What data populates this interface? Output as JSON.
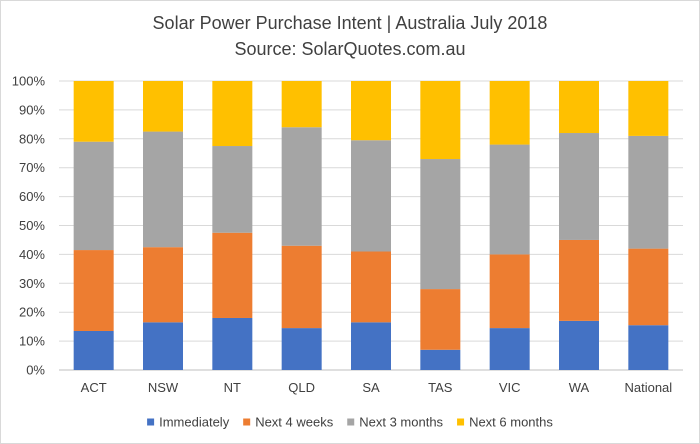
{
  "chart_data": {
    "type": "bar",
    "stacked": true,
    "title": "Solar Power Purchase Intent | Australia July 2018",
    "subtitle": "Source: SolarQuotes.com.au",
    "categories": [
      "ACT",
      "NSW",
      "NT",
      "QLD",
      "SA",
      "TAS",
      "VIC",
      "WA",
      "National"
    ],
    "series": [
      {
        "name": "Immediately",
        "color": "#4472c4",
        "values": [
          13.5,
          16.5,
          18,
          14.5,
          16.5,
          7,
          14.5,
          17,
          15.5
        ]
      },
      {
        "name": "Next 4 weeks",
        "color": "#ed7d31",
        "values": [
          28,
          26,
          29.5,
          28.5,
          24.5,
          21,
          25.5,
          28,
          26.5
        ]
      },
      {
        "name": "Next 3 months",
        "color": "#a5a5a5",
        "values": [
          37.5,
          40,
          30,
          41,
          38.5,
          45,
          38,
          37,
          39
        ]
      },
      {
        "name": "Next 6 months",
        "color": "#ffc000",
        "values": [
          21,
          17.5,
          22.5,
          16,
          20.5,
          27,
          22,
          18,
          19
        ]
      }
    ],
    "xlabel": "",
    "ylabel": "",
    "ylim": [
      0,
      100
    ],
    "yticks": [
      "0%",
      "10%",
      "20%",
      "30%",
      "40%",
      "50%",
      "60%",
      "70%",
      "80%",
      "90%",
      "100%"
    ],
    "grid": true,
    "legend": "bottom"
  }
}
